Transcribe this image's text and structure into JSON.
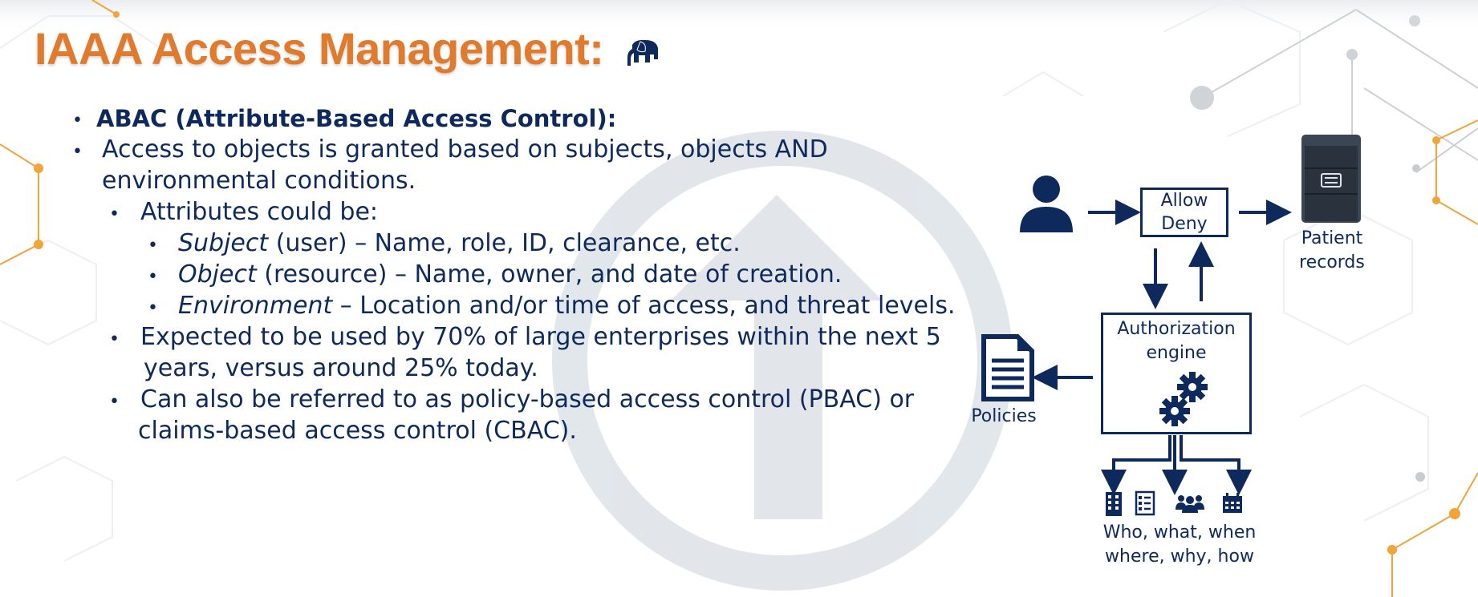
{
  "slide": {
    "title": "IAAA Access Management:",
    "icons": {
      "title_icon": "elephant-icon"
    },
    "colors": {
      "title": "#e07a2c",
      "text": "#0e2a5c",
      "accent_lines": "#f2a33a"
    }
  },
  "bullets": {
    "b1": "ABAC (Attribute-Based Access Control):",
    "b2_l1": "Access to objects is granted based on subjects, objects AND",
    "b2_l2": "environmental conditions.",
    "b3": "Attributes could be:",
    "b4_term": "Subject",
    "b4_rest": " (user) – Name, role, ID, clearance, etc.",
    "b5_term": "Object",
    "b5_rest": " (resource) – Name, owner, and date of creation.",
    "b6_term": "Environment",
    "b6_rest": " – Location and/or time of access, and threat levels.",
    "b7_l1": "Expected to be used by 70% of large enterprises within the next 5",
    "b7_l2": "years, versus around 25% today.",
    "b8_l1": "Can also be referred to as policy-based access control (PBAC) or",
    "b8_l2": "claims-based access control (CBAC)."
  },
  "diagram": {
    "allow": "Allow",
    "deny": "Deny",
    "patient_l1": "Patient",
    "patient_l2": "records",
    "engine_l1": "Authorization",
    "engine_l2": "engine",
    "policies": "Policies",
    "who_l1": "Who, what, when",
    "who_l2": "where, why, how",
    "icons": [
      "user-icon",
      "server-icon",
      "document-icon",
      "gear-icon",
      "building-icon",
      "checklist-icon",
      "group-icon",
      "calendar-icon"
    ]
  }
}
